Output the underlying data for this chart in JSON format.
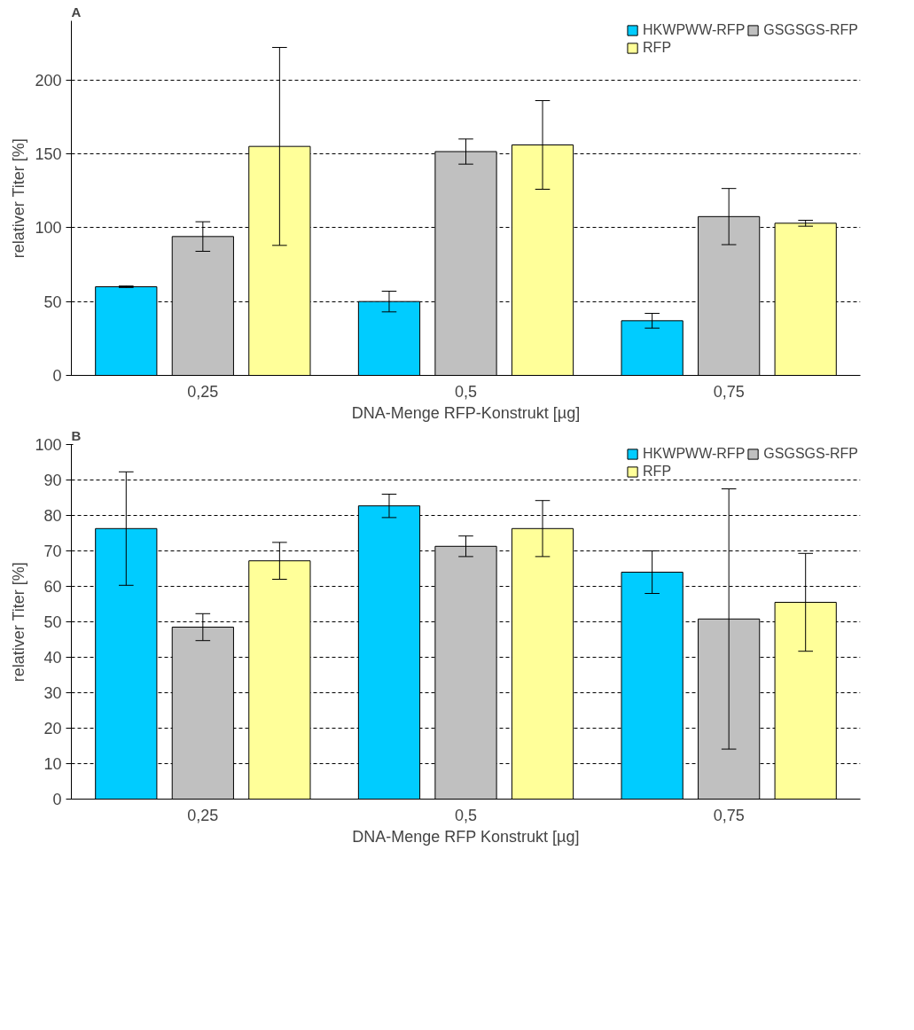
{
  "chart_data": [
    {
      "type": "bar",
      "title": "A",
      "xlabel": "DNA-Menge RFP-Konstrukt [µg]",
      "ylabel": "relativer Titer [%]",
      "categories": [
        "0,25",
        "0,5",
        "0,75"
      ],
      "series": [
        {
          "name": "HKWPWW-RFP",
          "color": "#00ccff",
          "values": [
            60,
            50,
            37
          ],
          "errors": [
            0.5,
            7,
            5
          ]
        },
        {
          "name": "GSGSGS-RFP",
          "color": "#c0c0c0",
          "values": [
            94,
            151.5,
            107.5
          ],
          "errors": [
            10,
            8.5,
            19
          ]
        },
        {
          "name": "RFP",
          "color": "#ffff99",
          "values": [
            155,
            156,
            103
          ],
          "errors": [
            67,
            30,
            2
          ]
        }
      ],
      "ylim": [
        0,
        240
      ],
      "yticks": [
        0,
        50,
        100,
        150,
        200
      ],
      "grid": "y",
      "legend": "top right"
    },
    {
      "type": "bar",
      "title": "B",
      "xlabel": "DNA-Menge RFP Konstrukt [µg]",
      "ylabel": "relativer Titer [%]",
      "categories": [
        "0,25",
        "0,5",
        "0,75"
      ],
      "series": [
        {
          "name": "HKWPWW-RFP",
          "color": "#00ccff",
          "values": [
            76.3,
            82.7,
            64
          ],
          "errors": [
            16,
            3.3,
            6
          ]
        },
        {
          "name": "GSGSGS-RFP",
          "color": "#c0c0c0",
          "values": [
            48.5,
            71.3,
            50.8
          ],
          "errors": [
            3.8,
            2.9,
            36.7
          ]
        },
        {
          "name": "RFP",
          "color": "#ffff99",
          "values": [
            67.2,
            76.3,
            55.5
          ],
          "errors": [
            5.2,
            7.9,
            13.8
          ]
        }
      ],
      "ylim": [
        0,
        100
      ],
      "yticks": [
        0,
        10,
        20,
        30,
        40,
        50,
        60,
        70,
        80,
        90,
        100
      ],
      "grid": "y",
      "legend": "top right"
    }
  ]
}
